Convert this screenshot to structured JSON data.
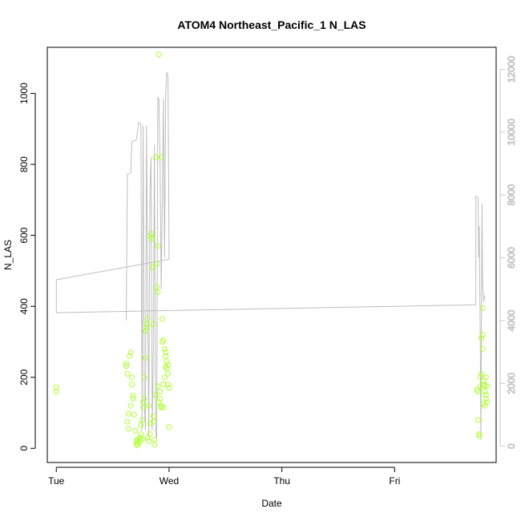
{
  "chart_data": {
    "type": "scatter",
    "title": "ATOM4 Northeast_Pacific_1 N_LAS",
    "xlabel": "Date",
    "ylabel": "N_LAS",
    "x_ticks": [
      "Tue",
      "Wed",
      "Thu",
      "Fri"
    ],
    "y_ticks": [
      "0",
      "200",
      "400",
      "600",
      "800",
      "1000"
    ],
    "y2_ticks": [
      "0",
      "2000",
      "4000",
      "6000",
      "8000",
      "10000",
      "12000"
    ],
    "xlim_days": [
      -0.08,
      3.9
    ],
    "ylim": [
      -40,
      1130
    ],
    "y2lim": [
      -520,
      12700
    ],
    "grid": false,
    "colors": {
      "points": "#adff2f",
      "line": "#bebebe",
      "right_axis": "#c8c8c8"
    },
    "series": [
      {
        "kind": "points",
        "points": [
          [
            0.0,
            172
          ],
          [
            0.0,
            160
          ],
          [
            0.62,
            238
          ],
          [
            0.62,
            232
          ],
          [
            0.63,
            210
          ],
          [
            0.63,
            75
          ],
          [
            0.64,
            97
          ],
          [
            0.64,
            55
          ],
          [
            0.65,
            260
          ],
          [
            0.66,
            270
          ],
          [
            0.66,
            120
          ],
          [
            0.67,
            180
          ],
          [
            0.67,
            200
          ],
          [
            0.68,
            148
          ],
          [
            0.68,
            140
          ],
          [
            0.69,
            95
          ],
          [
            0.7,
            50
          ],
          [
            0.71,
            20
          ],
          [
            0.71,
            12
          ],
          [
            0.72,
            8
          ],
          [
            0.72,
            25
          ],
          [
            0.73,
            15
          ],
          [
            0.74,
            30
          ],
          [
            0.74,
            22
          ],
          [
            0.75,
            65
          ],
          [
            0.75,
            40
          ],
          [
            0.76,
            25
          ],
          [
            0.76,
            80
          ],
          [
            0.77,
            115
          ],
          [
            0.77,
            130
          ],
          [
            0.78,
            140
          ],
          [
            0.78,
            200
          ],
          [
            0.79,
            255
          ],
          [
            0.79,
            330
          ],
          [
            0.8,
            340
          ],
          [
            0.8,
            350
          ],
          [
            0.81,
            365
          ],
          [
            0.81,
            30
          ],
          [
            0.82,
            120
          ],
          [
            0.82,
            20
          ],
          [
            0.83,
            70
          ],
          [
            0.83,
            40
          ],
          [
            0.84,
            605
          ],
          [
            0.84,
            595
          ],
          [
            0.85,
            590
          ],
          [
            0.85,
            510
          ],
          [
            0.86,
            350
          ],
          [
            0.86,
            90
          ],
          [
            0.87,
            10
          ],
          [
            0.87,
            25
          ],
          [
            0.88,
            820
          ],
          [
            0.88,
            150
          ],
          [
            0.89,
            520
          ],
          [
            0.89,
            455
          ],
          [
            0.9,
            440
          ],
          [
            0.9,
            570
          ],
          [
            0.91,
            1110
          ],
          [
            0.91,
            130
          ],
          [
            0.92,
            160
          ],
          [
            0.92,
            140
          ],
          [
            0.93,
            820
          ],
          [
            0.93,
            120
          ],
          [
            0.94,
            300
          ],
          [
            0.94,
            365
          ],
          [
            0.95,
            305
          ],
          [
            0.95,
            180
          ],
          [
            0.96,
            200
          ],
          [
            0.96,
            280
          ],
          [
            0.97,
            270
          ],
          [
            0.97,
            260
          ],
          [
            0.98,
            245
          ],
          [
            0.98,
            225
          ],
          [
            0.99,
            210
          ],
          [
            0.99,
            180
          ],
          [
            1.0,
            170
          ],
          [
            1.0,
            60
          ],
          [
            0.93,
            115
          ],
          [
            0.95,
            115
          ],
          [
            0.97,
            230
          ],
          [
            0.99,
            235
          ],
          [
            0.9,
            175
          ],
          [
            0.86,
            75
          ],
          [
            3.73,
            165
          ],
          [
            3.74,
            160
          ],
          [
            3.74,
            80
          ],
          [
            3.75,
            40
          ],
          [
            3.75,
            35
          ],
          [
            3.76,
            175
          ],
          [
            3.76,
            200
          ],
          [
            3.77,
            210
          ],
          [
            3.77,
            310
          ],
          [
            3.78,
            320
          ],
          [
            3.78,
            395
          ],
          [
            3.78,
            280
          ],
          [
            3.79,
            190
          ],
          [
            3.79,
            180
          ],
          [
            3.8,
            175
          ],
          [
            3.8,
            160
          ],
          [
            3.81,
            150
          ],
          [
            3.81,
            140
          ],
          [
            3.82,
            130
          ],
          [
            3.82,
            175
          ],
          [
            3.8,
            120
          ],
          [
            3.79,
            125
          ],
          [
            3.81,
            200
          ]
        ]
      },
      {
        "kind": "line",
        "axis": "right",
        "points": [
          [
            0.0,
            5300
          ],
          [
            0.0,
            4250
          ],
          [
            3.72,
            4500
          ],
          [
            3.72,
            7950
          ],
          [
            3.74,
            7920
          ],
          [
            3.745,
            6000
          ],
          [
            3.75,
            7000
          ],
          [
            3.76,
            3000
          ],
          [
            3.765,
            200
          ],
          [
            3.77,
            4000
          ],
          [
            3.775,
            7700
          ],
          [
            3.78,
            5200
          ],
          [
            3.79,
            4600
          ],
          [
            3.8,
            4800
          ]
        ]
      },
      {
        "kind": "line",
        "axis": "right",
        "points": [
          [
            0.62,
            4000
          ],
          [
            0.63,
            8650
          ],
          [
            0.66,
            8700
          ],
          [
            0.67,
            9700
          ],
          [
            0.71,
            9750
          ],
          [
            0.73,
            10300
          ],
          [
            0.75,
            10250
          ],
          [
            0.76,
            500
          ],
          [
            0.77,
            10200
          ],
          [
            0.78,
            1500
          ],
          [
            0.79,
            500
          ],
          [
            0.8,
            10200
          ],
          [
            0.81,
            5000
          ],
          [
            0.82,
            300
          ],
          [
            0.83,
            8000
          ],
          [
            0.84,
            9200
          ],
          [
            0.85,
            500
          ],
          [
            0.86,
            3000
          ],
          [
            0.87,
            9600
          ],
          [
            0.88,
            500
          ],
          [
            0.89,
            200
          ],
          [
            0.9,
            11100
          ],
          [
            0.91,
            11050
          ],
          [
            0.92,
            9000
          ],
          [
            0.93,
            5000
          ],
          [
            0.94,
            8000
          ],
          [
            0.95,
            11050
          ],
          [
            0.96,
            6000
          ],
          [
            0.97,
            11200
          ],
          [
            0.98,
            11900
          ],
          [
            0.99,
            11800
          ],
          [
            1.0,
            5950
          ],
          [
            0.0,
            5300
          ]
        ]
      }
    ]
  }
}
